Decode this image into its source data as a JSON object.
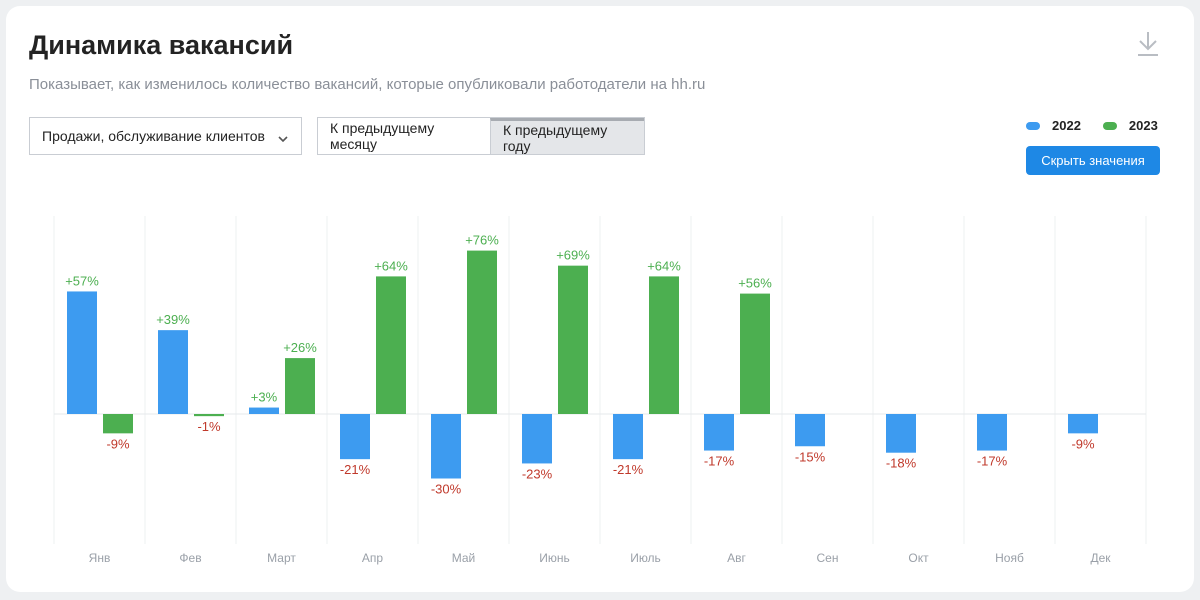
{
  "header": {
    "title": "Динамика вакансий",
    "subtitle": "Показывает, как изменилось количество вакансий, которые опубликовали работодатели на hh.ru"
  },
  "controls": {
    "category_select": "Продажи, обслуживание клиентов",
    "compare_options": [
      "К предыдущему месяцу",
      "К предыдущему году"
    ],
    "compare_selected": "К предыдущему году",
    "hide_values_button": "Скрыть значения"
  },
  "icons": {
    "download": "download-icon",
    "dropdown": "chevron-down-icon"
  },
  "colors": {
    "series_2022": "#3d9bf0",
    "series_2023": "#4caf50",
    "positive_label": "#4caf50",
    "negative_label": "#c0392b",
    "button": "#1e88e5"
  },
  "chart_data": {
    "type": "bar",
    "categories": [
      "Янв",
      "Фев",
      "Март",
      "Апр",
      "Май",
      "Июнь",
      "Июль",
      "Авг",
      "Сен",
      "Окт",
      "Нояб",
      "Дек"
    ],
    "series": [
      {
        "name": "2022",
        "values": [
          57,
          39,
          3,
          -21,
          -30,
          -23,
          -21,
          -17,
          -15,
          -18,
          -17,
          -9
        ],
        "labels": [
          "+57%",
          "+39%",
          "+3%",
          "-21%",
          "-30%",
          "-23%",
          "-21%",
          "-17%",
          "-15%",
          "-18%",
          "-17%",
          "-9%"
        ]
      },
      {
        "name": "2023",
        "values": [
          -9,
          -1,
          26,
          64,
          76,
          69,
          64,
          56,
          null,
          null,
          null,
          null
        ],
        "labels": [
          "-9%",
          "-1%",
          "+26%",
          "+64%",
          "+76%",
          "+69%",
          "+64%",
          "+56%",
          "",
          "",
          "",
          ""
        ]
      }
    ],
    "unit": "%",
    "ylim": [
      -60,
      76
    ],
    "grid": "vertical",
    "legend": "top-right"
  }
}
